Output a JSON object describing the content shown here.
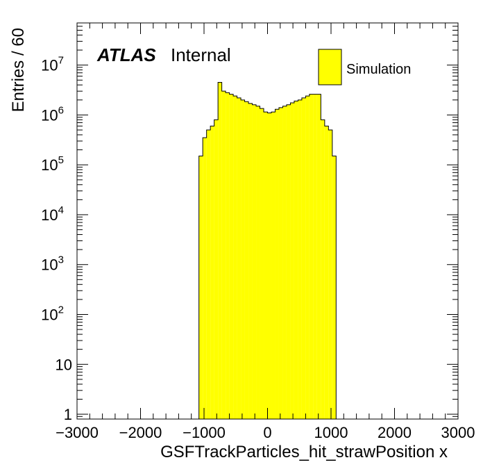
{
  "chart_data": {
    "type": "bar",
    "histogram": true,
    "xlabel": "GSFTrackParticles_hit_strawPosition x",
    "ylabel": "Entries / 60",
    "xlim": [
      -3000,
      3000
    ],
    "ylim": [
      0.8,
      70000000
    ],
    "yscale": "log",
    "grid": false,
    "legend": {
      "placement": "top-right",
      "entries": [
        {
          "label": "Simulation",
          "color": "#ffff00"
        }
      ]
    },
    "atlas_label": {
      "bold": "ATLAS",
      "text": "Internal"
    },
    "fill_color": "#ffff00",
    "x_ticks": [
      "−3000",
      "−2000",
      "−1000",
      "0",
      "1000",
      "2000",
      "3000"
    ],
    "x_tick_values": [
      -3000,
      -2000,
      -1000,
      0,
      1000,
      2000,
      3000
    ],
    "y_ticks": [
      {
        "value": 1,
        "base": "1",
        "exp": ""
      },
      {
        "value": 10,
        "base": "10",
        "exp": ""
      },
      {
        "value": 100,
        "base": "10",
        "exp": "2"
      },
      {
        "value": 1000,
        "base": "10",
        "exp": "3"
      },
      {
        "value": 10000,
        "base": "10",
        "exp": "4"
      },
      {
        "value": 100000,
        "base": "10",
        "exp": "5"
      },
      {
        "value": 1000000,
        "base": "10",
        "exp": "6"
      },
      {
        "value": 10000000,
        "base": "10",
        "exp": "7"
      }
    ],
    "bin_width": 60,
    "bins": [
      [
        -1080,
        150000
      ],
      [
        -1020,
        350000
      ],
      [
        -960,
        500000
      ],
      [
        -900,
        600000
      ],
      [
        -840,
        800000
      ],
      [
        -780,
        4500000
      ],
      [
        -720,
        3000000
      ],
      [
        -660,
        2800000
      ],
      [
        -600,
        2600000
      ],
      [
        -540,
        2400000
      ],
      [
        -480,
        2200000
      ],
      [
        -420,
        2000000
      ],
      [
        -360,
        1850000
      ],
      [
        -300,
        1700000
      ],
      [
        -240,
        1600000
      ],
      [
        -180,
        1500000
      ],
      [
        -120,
        1350000
      ],
      [
        -60,
        1150000
      ],
      [
        0,
        1100000
      ],
      [
        60,
        1150000
      ],
      [
        120,
        1300000
      ],
      [
        180,
        1400000
      ],
      [
        240,
        1500000
      ],
      [
        300,
        1600000
      ],
      [
        360,
        1750000
      ],
      [
        420,
        1900000
      ],
      [
        480,
        2000000
      ],
      [
        540,
        2200000
      ],
      [
        600,
        2400000
      ],
      [
        660,
        2600000
      ],
      [
        720,
        2600000
      ],
      [
        780,
        2600000
      ],
      [
        840,
        800000
      ],
      [
        900,
        600000
      ],
      [
        960,
        500000
      ],
      [
        1020,
        150000
      ]
    ]
  }
}
